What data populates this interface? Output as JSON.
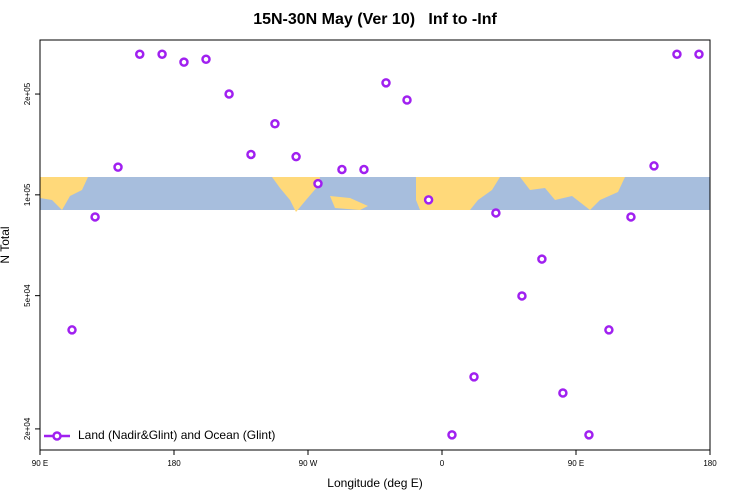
{
  "chart_data": {
    "type": "scatter",
    "title": "15N-30N May (Ver 10)   Inf to -Inf",
    "xlabel": "Longitude (deg E)",
    "ylabel": "N Total",
    "x": [
      111.5,
      127,
      142.4,
      157,
      172,
      186.7,
      201.5,
      217,
      231.7,
      247.8,
      262,
      276.7,
      292.8,
      307.6,
      322.4,
      336.5,
      351,
      366.7,
      381.5,
      396.2,
      413.7,
      427.1,
      441.2,
      458.7,
      472.1,
      486.9,
      502.4,
      517.8,
      532.6
    ],
    "series": [
      {
        "name": "Land (Nadir&Glint) and Ocean (Glint)",
        "color": "#a020f0",
        "values": [
          39500,
          85900,
          121000,
          263000,
          263000,
          249000,
          254000,
          200000,
          132000,
          163000,
          130000,
          108000,
          119000,
          119000,
          216000,
          192000,
          96600,
          19200,
          28600,
          88300,
          49900,
          64300,
          25600,
          19200,
          39500,
          85900,
          122000,
          263000,
          263000
        ]
      }
    ],
    "xlim": [
      90,
      540
    ],
    "xticks": [
      {
        "value": 90,
        "label": "90 E"
      },
      180,
      {
        "value": 270,
        "label": "90 W"
      },
      {
        "value": 360,
        "label": "0"
      },
      {
        "value": 450,
        "label": "90 E"
      },
      {
        "value": 540,
        "label": "180"
      }
    ],
    "ylim": [
      17300,
      290000
    ],
    "ylog": true,
    "yticks": [
      {
        "value": 20000,
        "label": "2e+04"
      },
      {
        "value": 50000,
        "label": "5e+04"
      },
      {
        "value": 100000,
        "label": "1e+05"
      },
      {
        "value": 200000,
        "label": "2e+05"
      }
    ],
    "legend": "lower left"
  }
}
